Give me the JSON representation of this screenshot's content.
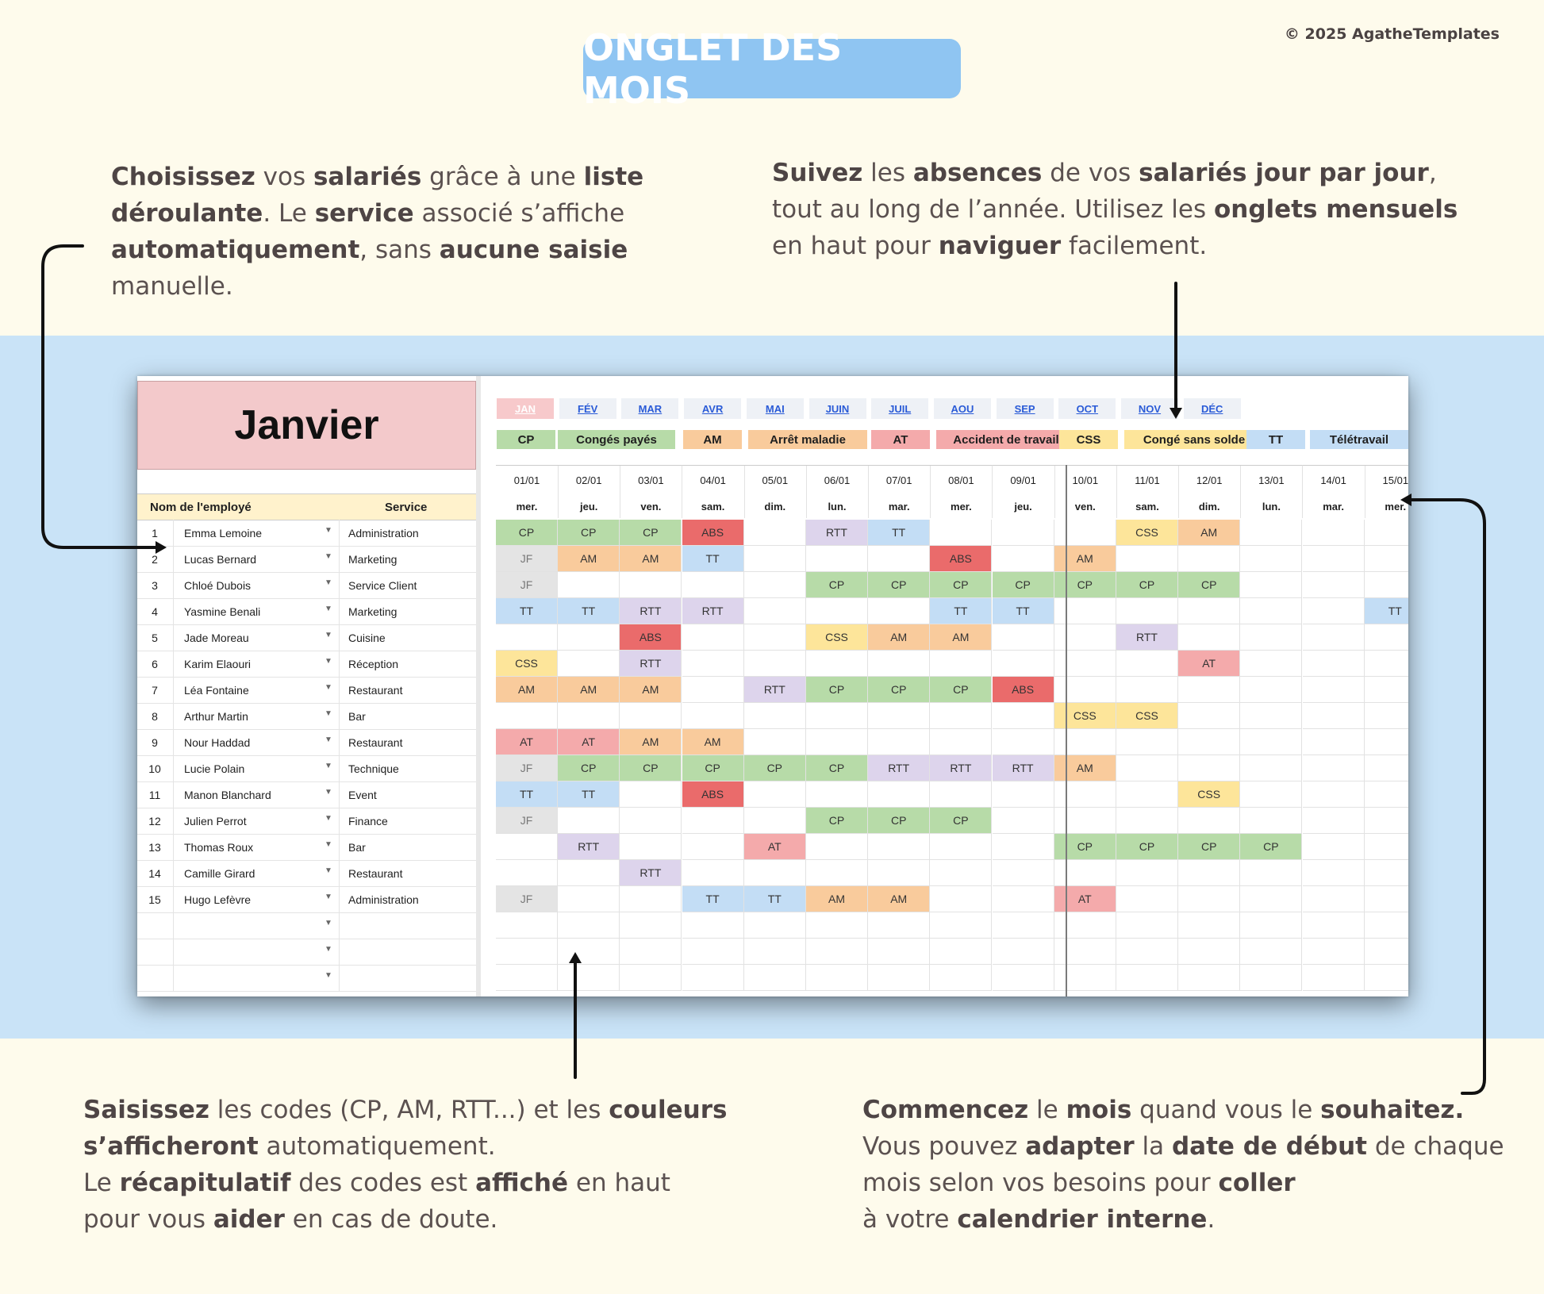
{
  "copyright": "© 2025 AgatheTemplates",
  "title": "ONGLET DES MOIS",
  "blurbs": {
    "top_left": [
      [
        [
          "b",
          "Choisissez"
        ],
        [
          "t",
          " vos "
        ],
        [
          "b",
          "salariés"
        ],
        [
          "t",
          " grâce à une "
        ],
        [
          "b",
          "liste"
        ]
      ],
      [
        [
          "b",
          "déroulante"
        ],
        [
          "t",
          ". Le "
        ],
        [
          "b",
          "service"
        ],
        [
          "t",
          " associé s’affiche"
        ]
      ],
      [
        [
          "b",
          "automatiquement"
        ],
        [
          "t",
          ", sans "
        ],
        [
          "b",
          "aucune saisie"
        ]
      ],
      [
        [
          "t",
          "manuelle."
        ]
      ]
    ],
    "top_right": [
      [
        [
          "b",
          "Suivez"
        ],
        [
          "t",
          " les "
        ],
        [
          "b",
          "absences"
        ],
        [
          "t",
          " de vos "
        ],
        [
          "b",
          "salariés jour par jour"
        ],
        [
          "t",
          ","
        ]
      ],
      [
        [
          "t",
          "tout au long de l’année. Utilisez les "
        ],
        [
          "b",
          "onglets mensuels"
        ]
      ],
      [
        [
          "t",
          "en haut pour "
        ],
        [
          "b",
          "naviguer"
        ],
        [
          "t",
          " facilement."
        ]
      ]
    ],
    "bottom_left": [
      [
        [
          "b",
          "Saisissez"
        ],
        [
          "t",
          " les codes (CP, AM, RTT...) et les "
        ],
        [
          "b",
          "couleurs"
        ]
      ],
      [
        [
          "b",
          "s’afficheront"
        ],
        [
          "t",
          " automatiquement."
        ]
      ],
      [
        [
          "t",
          "Le "
        ],
        [
          "b",
          "récapitulatif"
        ],
        [
          "t",
          " des codes est "
        ],
        [
          "b",
          "affiché"
        ],
        [
          "t",
          " en haut"
        ]
      ],
      [
        [
          "t",
          "pour vous "
        ],
        [
          "b",
          "aider"
        ],
        [
          "t",
          " en cas de doute."
        ]
      ]
    ],
    "bottom_right": [
      [
        [
          "b",
          "Commencez"
        ],
        [
          "t",
          " le "
        ],
        [
          "b",
          "mois"
        ],
        [
          "t",
          " quand vous le "
        ],
        [
          "b",
          "souhaitez."
        ]
      ],
      [
        [
          "t",
          " Vous pouvez "
        ],
        [
          "b",
          "adapter"
        ],
        [
          "t",
          " la "
        ],
        [
          "b",
          "date de début"
        ],
        [
          "t",
          " de chaque"
        ]
      ],
      [
        [
          "t",
          "mois selon vos besoins pour "
        ],
        [
          "b",
          "coller"
        ]
      ],
      [
        [
          "t",
          "à votre "
        ],
        [
          "b",
          "calendrier interne"
        ],
        [
          "t",
          "."
        ]
      ]
    ]
  },
  "sheet": {
    "month_title": "Janvier",
    "header_name": "Nom de l'employé",
    "header_service": "Service",
    "employees": [
      {
        "num": "1",
        "name": "Emma Lemoine",
        "service": "Administration"
      },
      {
        "num": "2",
        "name": "Lucas Bernard",
        "service": "Marketing"
      },
      {
        "num": "3",
        "name": "Chloé Dubois",
        "service": "Service Client"
      },
      {
        "num": "4",
        "name": "Yasmine Benali",
        "service": "Marketing"
      },
      {
        "num": "5",
        "name": "Jade Moreau",
        "service": "Cuisine"
      },
      {
        "num": "6",
        "name": "Karim Elaouri",
        "service": "Réception"
      },
      {
        "num": "7",
        "name": "Léa Fontaine",
        "service": "Restaurant"
      },
      {
        "num": "8",
        "name": "Arthur Martin",
        "service": "Bar"
      },
      {
        "num": "9",
        "name": "Nour Haddad",
        "service": "Restaurant"
      },
      {
        "num": "10",
        "name": "Lucie Polain",
        "service": "Technique"
      },
      {
        "num": "11",
        "name": "Manon Blanchard",
        "service": "Event"
      },
      {
        "num": "12",
        "name": "Julien Perrot",
        "service": "Finance"
      },
      {
        "num": "13",
        "name": "Thomas Roux",
        "service": "Bar"
      },
      {
        "num": "14",
        "name": "Camille Girard",
        "service": "Restaurant"
      },
      {
        "num": "15",
        "name": "Hugo Lefèvre",
        "service": "Administration"
      }
    ],
    "month_tabs": [
      "JAN",
      "FÉV",
      "MAR",
      "AVR",
      "MAI",
      "JUIN",
      "JUIL",
      "AOU",
      "SEP",
      "OCT",
      "NOV",
      "DÉC"
    ],
    "active_tab": "JAN",
    "legend": [
      {
        "code": "CP",
        "label": "Congés payés",
        "color": "#b7dba8"
      },
      {
        "code": "AM",
        "label": "Arrêt maladie",
        "color": "#f9cb9c"
      },
      {
        "code": "AT",
        "label": "Accident de travail",
        "color": "#f4aaab"
      },
      {
        "code": "CSS",
        "label": "Congé sans solde",
        "color": "#fde59a"
      },
      {
        "code": "TT",
        "label": "Télétravail",
        "color": "#c3ddf5"
      }
    ],
    "days": [
      {
        "date": "01/01",
        "weekday": "mer."
      },
      {
        "date": "02/01",
        "weekday": "jeu."
      },
      {
        "date": "03/01",
        "weekday": "ven."
      },
      {
        "date": "04/01",
        "weekday": "sam."
      },
      {
        "date": "05/01",
        "weekday": "dim."
      },
      {
        "date": "06/01",
        "weekday": "lun."
      },
      {
        "date": "07/01",
        "weekday": "mar."
      },
      {
        "date": "08/01",
        "weekday": "mer."
      },
      {
        "date": "09/01",
        "weekday": "jeu."
      },
      {
        "date": "10/01",
        "weekday": "ven."
      },
      {
        "date": "11/01",
        "weekday": "sam."
      },
      {
        "date": "12/01",
        "weekday": "dim."
      },
      {
        "date": "13/01",
        "weekday": "lun."
      },
      {
        "date": "14/01",
        "weekday": "mar."
      },
      {
        "date": "15/01",
        "weekday": "mer."
      }
    ],
    "code_colors": {
      "CP": "#b7dba8",
      "AM": "#f9cb9c",
      "AT": "#f4aaab",
      "CSS": "#fde59a",
      "TT": "#c3ddf5",
      "RTT": "#ddd4ec",
      "ABS": "#ea6b6b",
      "JF": "#e4e4e4"
    },
    "grid": [
      [
        "CP",
        "CP",
        "CP",
        "ABS",
        "",
        "RTT",
        "TT",
        "",
        "",
        "",
        "CSS",
        "AM",
        "",
        "",
        ""
      ],
      [
        "JF",
        "AM",
        "AM",
        "TT",
        "",
        "",
        "",
        "ABS",
        "",
        "AM",
        "",
        "",
        "",
        "",
        ""
      ],
      [
        "JF",
        "",
        "",
        "",
        "",
        "CP",
        "CP",
        "CP",
        "CP",
        "CP",
        "CP",
        "CP",
        "",
        "",
        ""
      ],
      [
        "TT",
        "TT",
        "RTT",
        "RTT",
        "",
        "",
        "",
        "TT",
        "TT",
        "",
        "",
        "",
        "",
        "",
        "TT"
      ],
      [
        "",
        "",
        "ABS",
        "",
        "",
        "CSS",
        "AM",
        "AM",
        "",
        "",
        "RTT",
        "",
        "",
        "",
        ""
      ],
      [
        "CSS",
        "",
        "RTT",
        "",
        "",
        "",
        "",
        "",
        "",
        "",
        "",
        "AT",
        "",
        "",
        ""
      ],
      [
        "AM",
        "AM",
        "AM",
        "",
        "RTT",
        "CP",
        "CP",
        "CP",
        "ABS",
        "",
        "",
        "",
        "",
        "",
        ""
      ],
      [
        "",
        "",
        "",
        "",
        "",
        "",
        "",
        "",
        "",
        "CSS",
        "CSS",
        "",
        "",
        "",
        ""
      ],
      [
        "AT",
        "AT",
        "AM",
        "AM",
        "",
        "",
        "",
        "",
        "",
        "",
        "",
        "",
        "",
        "",
        ""
      ],
      [
        "JF",
        "CP",
        "CP",
        "CP",
        "CP",
        "CP",
        "RTT",
        "RTT",
        "RTT",
        "AM",
        "",
        "",
        "",
        "",
        ""
      ],
      [
        "TT",
        "TT",
        "",
        "ABS",
        "",
        "",
        "",
        "",
        "",
        "",
        "",
        "CSS",
        "",
        "",
        ""
      ],
      [
        "JF",
        "",
        "",
        "",
        "",
        "CP",
        "CP",
        "CP",
        "",
        "",
        "",
        "",
        "",
        "",
        ""
      ],
      [
        "",
        "RTT",
        "",
        "",
        "AT",
        "",
        "",
        "",
        "",
        "CP",
        "CP",
        "CP",
        "CP",
        "",
        ""
      ],
      [
        "",
        "",
        "RTT",
        "",
        "",
        "",
        "",
        "",
        "",
        "",
        "",
        "",
        "",
        "",
        ""
      ],
      [
        "JF",
        "",
        "",
        "TT",
        "TT",
        "AM",
        "AM",
        "",
        "",
        "AT",
        "",
        "",
        "",
        "",
        ""
      ]
    ]
  }
}
